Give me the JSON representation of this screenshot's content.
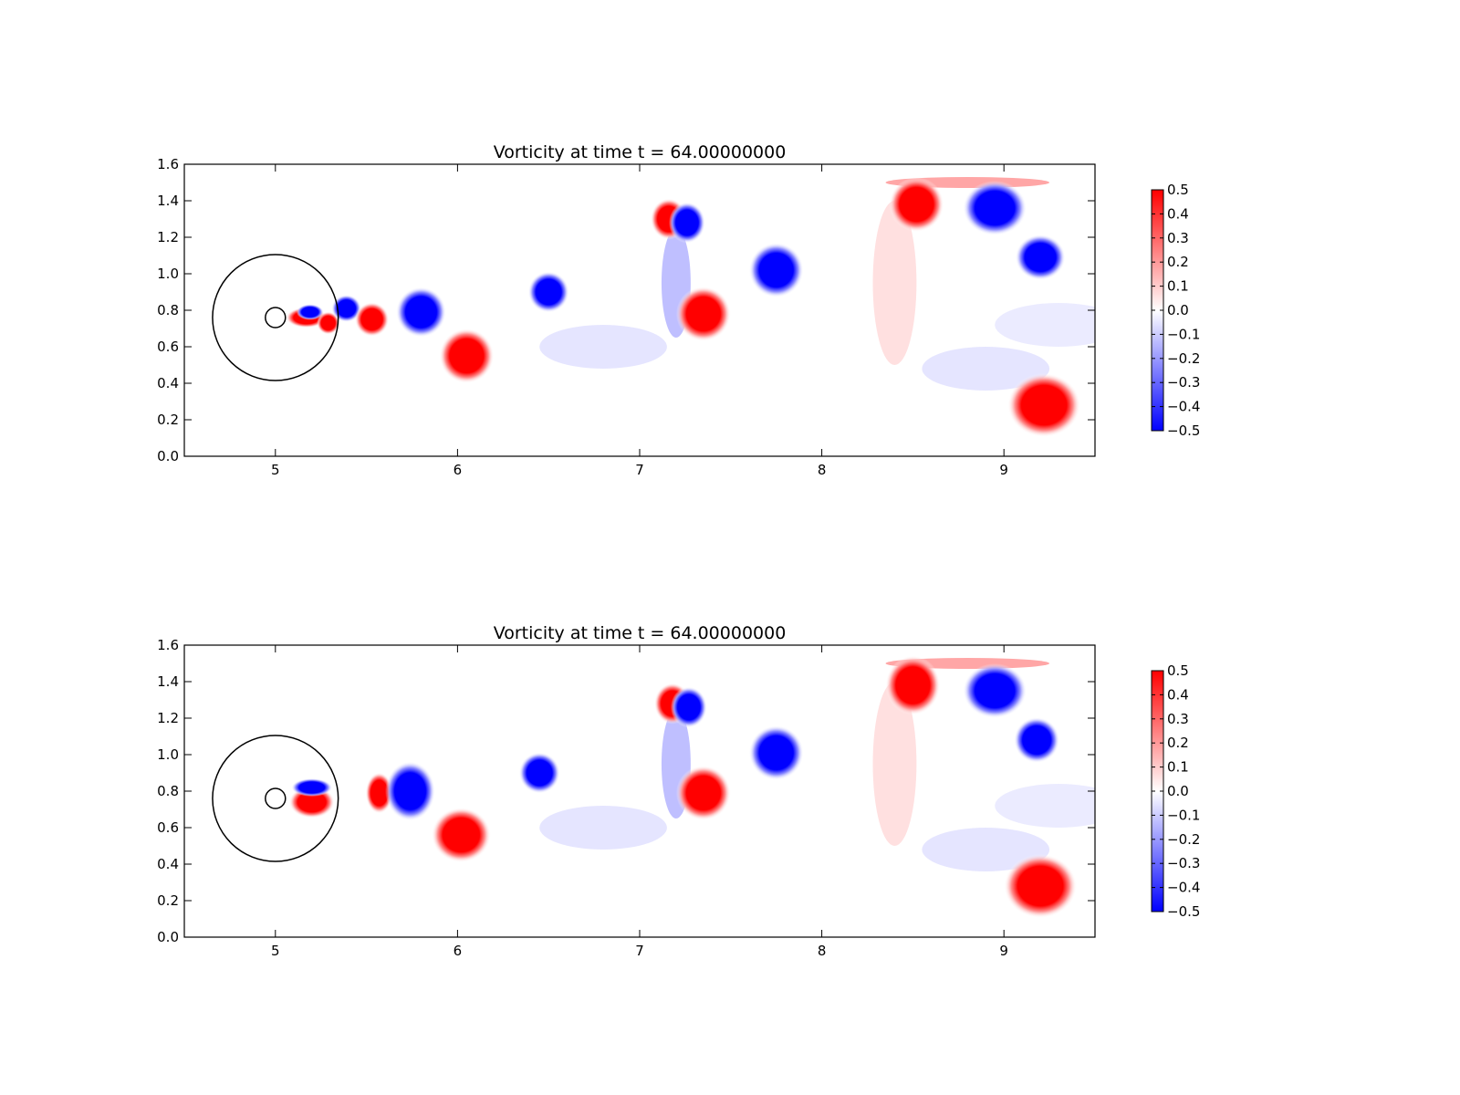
{
  "chart_data": [
    {
      "type": "heatmap",
      "title": "Vorticity at time t =    64.00000000",
      "xlabel": "",
      "ylabel": "",
      "xlim": [
        4.5,
        9.5
      ],
      "ylim": [
        0.0,
        1.6
      ],
      "x_ticks": [
        "5",
        "6",
        "7",
        "8",
        "9"
      ],
      "y_ticks": [
        "0.0",
        "0.2",
        "0.4",
        "0.6",
        "0.8",
        "1.0",
        "1.2",
        "1.4",
        "1.6"
      ],
      "colorbar": {
        "range": [
          -0.5,
          0.5
        ],
        "ticks": [
          "0.5",
          "0.4",
          "0.3",
          "0.2",
          "0.1",
          "0.0",
          "−0.1",
          "−0.2",
          "−0.3",
          "−0.4",
          "−0.5"
        ],
        "positive_color": "#ff0000",
        "negative_color": "#0000ff",
        "zero_color": "#ffffff"
      },
      "circles": [
        {
          "cx": 5.0,
          "cy": 0.76,
          "r": 0.345
        },
        {
          "cx": 5.0,
          "cy": 0.76,
          "r": 0.055
        }
      ],
      "vortices": [
        {
          "x": 5.17,
          "y": 0.76,
          "rx": 0.09,
          "ry": 0.045,
          "v": 0.5
        },
        {
          "x": 5.19,
          "y": 0.79,
          "rx": 0.06,
          "ry": 0.035,
          "v": -0.5
        },
        {
          "x": 5.29,
          "y": 0.73,
          "rx": 0.05,
          "ry": 0.05,
          "v": 0.5
        },
        {
          "x": 5.39,
          "y": 0.81,
          "rx": 0.065,
          "ry": 0.06,
          "v": -0.5
        },
        {
          "x": 5.53,
          "y": 0.75,
          "rx": 0.075,
          "ry": 0.075,
          "v": 0.5
        },
        {
          "x": 5.8,
          "y": 0.79,
          "rx": 0.11,
          "ry": 0.11,
          "v": -0.5
        },
        {
          "x": 6.05,
          "y": 0.55,
          "rx": 0.12,
          "ry": 0.12,
          "v": 0.5
        },
        {
          "x": 6.5,
          "y": 0.9,
          "rx": 0.09,
          "ry": 0.09,
          "v": -0.5
        },
        {
          "x": 7.16,
          "y": 1.3,
          "rx": 0.08,
          "ry": 0.09,
          "v": 0.5
        },
        {
          "x": 7.26,
          "y": 1.28,
          "rx": 0.08,
          "ry": 0.09,
          "v": -0.5
        },
        {
          "x": 7.35,
          "y": 0.78,
          "rx": 0.12,
          "ry": 0.12,
          "v": 0.5
        },
        {
          "x": 7.75,
          "y": 1.02,
          "rx": 0.12,
          "ry": 0.12,
          "v": -0.5
        },
        {
          "x": 8.52,
          "y": 1.38,
          "rx": 0.12,
          "ry": 0.12,
          "v": 0.5
        },
        {
          "x": 8.95,
          "y": 1.36,
          "rx": 0.14,
          "ry": 0.12,
          "v": -0.5
        },
        {
          "x": 9.2,
          "y": 1.09,
          "rx": 0.11,
          "ry": 0.1,
          "v": -0.5
        },
        {
          "x": 9.22,
          "y": 0.28,
          "rx": 0.16,
          "ry": 0.14,
          "v": 0.5
        }
      ]
    },
    {
      "type": "heatmap",
      "title": "Vorticity at time t =    64.00000000",
      "xlabel": "",
      "ylabel": "",
      "xlim": [
        4.5,
        9.5
      ],
      "ylim": [
        0.0,
        1.6
      ],
      "x_ticks": [
        "5",
        "6",
        "7",
        "8",
        "9"
      ],
      "y_ticks": [
        "0.0",
        "0.2",
        "0.4",
        "0.6",
        "0.8",
        "1.0",
        "1.2",
        "1.4",
        "1.6"
      ],
      "colorbar": {
        "range": [
          -0.5,
          0.5
        ],
        "ticks": [
          "0.5",
          "0.4",
          "0.3",
          "0.2",
          "0.1",
          "0.0",
          "−0.1",
          "−0.2",
          "−0.3",
          "−0.4",
          "−0.5"
        ],
        "positive_color": "#ff0000",
        "negative_color": "#0000ff",
        "zero_color": "#ffffff"
      },
      "circles": [
        {
          "cx": 5.0,
          "cy": 0.76,
          "r": 0.345
        },
        {
          "cx": 5.0,
          "cy": 0.76,
          "r": 0.055
        }
      ],
      "vortices": [
        {
          "x": 5.2,
          "y": 0.74,
          "rx": 0.1,
          "ry": 0.07,
          "v": 0.5
        },
        {
          "x": 5.2,
          "y": 0.82,
          "rx": 0.09,
          "ry": 0.04,
          "v": -0.5
        },
        {
          "x": 5.57,
          "y": 0.79,
          "rx": 0.06,
          "ry": 0.09,
          "v": 0.5
        },
        {
          "x": 5.74,
          "y": 0.8,
          "rx": 0.11,
          "ry": 0.13,
          "v": -0.5
        },
        {
          "x": 6.02,
          "y": 0.56,
          "rx": 0.13,
          "ry": 0.12,
          "v": 0.5
        },
        {
          "x": 6.45,
          "y": 0.9,
          "rx": 0.09,
          "ry": 0.09,
          "v": -0.5
        },
        {
          "x": 7.18,
          "y": 1.28,
          "rx": 0.08,
          "ry": 0.09,
          "v": 0.5
        },
        {
          "x": 7.27,
          "y": 1.26,
          "rx": 0.08,
          "ry": 0.09,
          "v": -0.5
        },
        {
          "x": 7.35,
          "y": 0.79,
          "rx": 0.12,
          "ry": 0.12,
          "v": 0.5
        },
        {
          "x": 7.75,
          "y": 1.01,
          "rx": 0.12,
          "ry": 0.12,
          "v": -0.5
        },
        {
          "x": 8.5,
          "y": 1.38,
          "rx": 0.12,
          "ry": 0.13,
          "v": 0.5
        },
        {
          "x": 8.95,
          "y": 1.35,
          "rx": 0.14,
          "ry": 0.12,
          "v": -0.5
        },
        {
          "x": 9.18,
          "y": 1.08,
          "rx": 0.1,
          "ry": 0.1,
          "v": -0.5
        },
        {
          "x": 9.2,
          "y": 0.28,
          "rx": 0.16,
          "ry": 0.14,
          "v": 0.5
        }
      ]
    }
  ]
}
